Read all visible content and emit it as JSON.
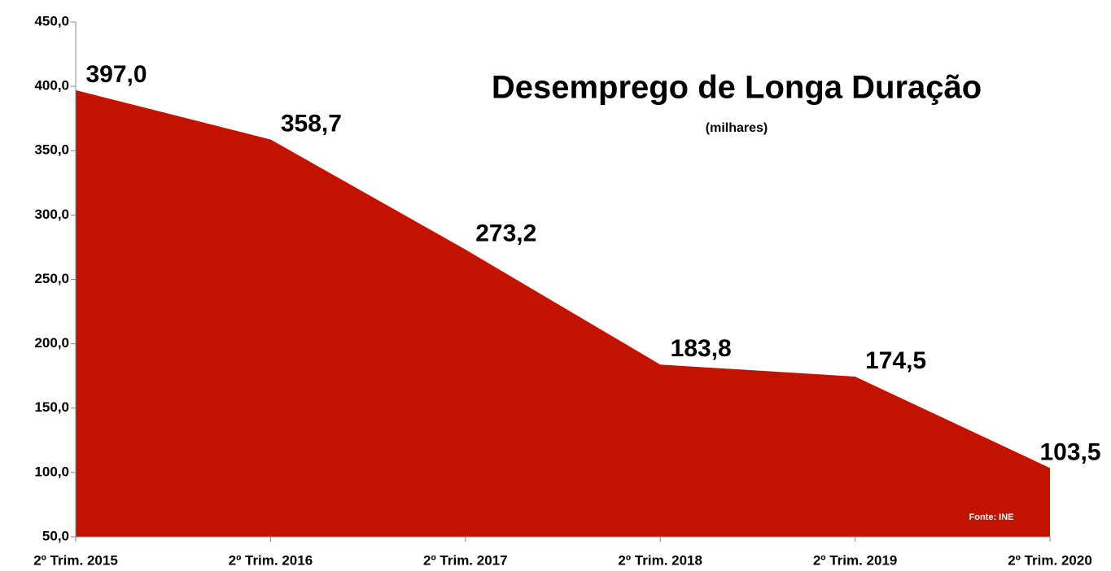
{
  "chart_data": {
    "type": "area",
    "title": "Desemprego de Longa Duração",
    "subtitle": "(milhares)",
    "annotation": "Fonte: INE",
    "categories": [
      "2º Trim. 2015",
      "2º Trim. 2016",
      "2º Trim. 2017",
      "2º Trim. 2018",
      "2º Trim. 2019",
      "2º Trim. 2020"
    ],
    "values": [
      397.0,
      358.7,
      273.2,
      183.8,
      174.5,
      103.5
    ],
    "value_labels": [
      "397,0",
      "358,7",
      "273,2",
      "183,8",
      "174,5",
      "103,5"
    ],
    "color": "#c21200",
    "ylim": [
      50,
      450
    ],
    "yticks": [
      {
        "value": 50,
        "label": "50,0"
      },
      {
        "value": 100,
        "label": "100,0"
      },
      {
        "value": 150,
        "label": "150,0"
      },
      {
        "value": 200,
        "label": "200,0"
      },
      {
        "value": 250,
        "label": "250,0"
      },
      {
        "value": 300,
        "label": "300,0"
      },
      {
        "value": 350,
        "label": "350,0"
      },
      {
        "value": 400,
        "label": "400,0"
      },
      {
        "value": 450,
        "label": "450,0"
      }
    ],
    "grid": false
  }
}
